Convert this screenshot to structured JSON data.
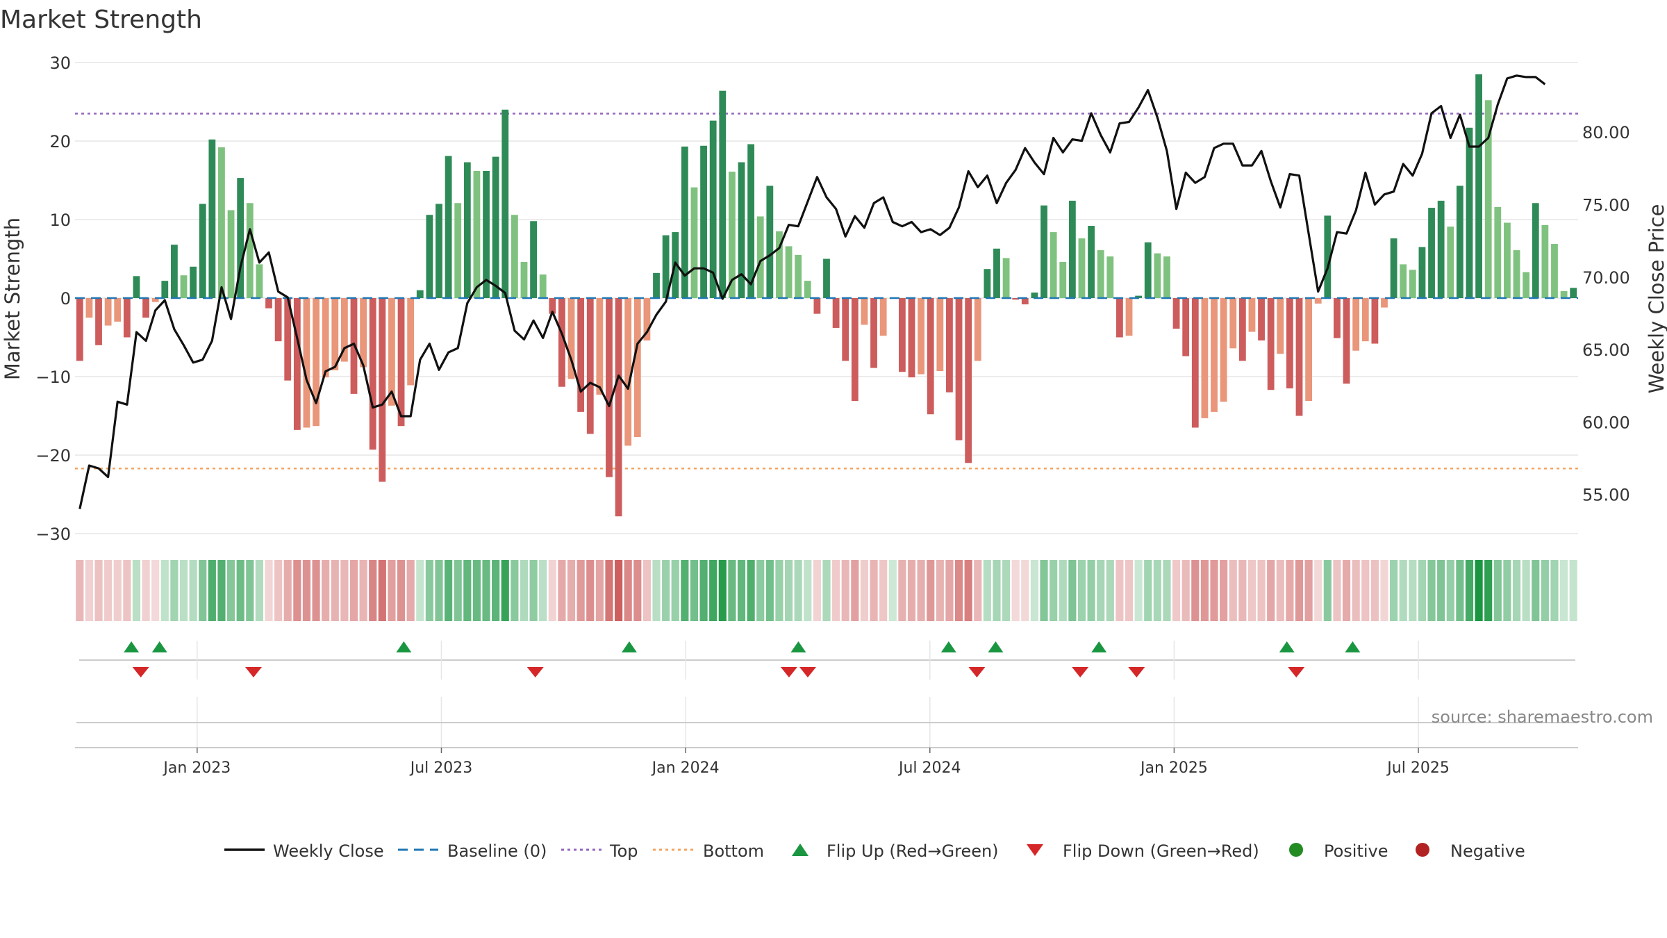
{
  "colors": {
    "posStrong": "#2e8b57",
    "posWeak": "#7fc27f",
    "negStrong": "#cd5c5c",
    "negWeak": "#e9967a",
    "close": "#111111",
    "baseline": "#1f77b4",
    "top": "#9467bd",
    "bottom": "#f4a460",
    "flipUp": "#1a9641",
    "flipDown": "#d62728",
    "positive": "#228b22",
    "negative": "#b22222",
    "grid": "#e6e6e6"
  },
  "chart_data": {
    "type": "bar",
    "title": "Market Strength",
    "source": "source: sharemaestro.com",
    "ylabel_left": "Market Strength",
    "ylabel_right": "Weekly Close Price",
    "ylim_left": [
      -30,
      30
    ],
    "yticks_left": [
      {
        "v": 30,
        "label": "30"
      },
      {
        "v": 20,
        "label": "20"
      },
      {
        "v": 10,
        "label": "10"
      },
      {
        "v": 0,
        "label": "0"
      },
      {
        "v": -10,
        "label": "−10"
      },
      {
        "v": -20,
        "label": "−20"
      },
      {
        "v": -30,
        "label": "−30"
      }
    ],
    "ylim_right": [
      52.3,
      84.8
    ],
    "yticks_right": [
      {
        "v": 80,
        "label": "80.00"
      },
      {
        "v": 75,
        "label": "75.00"
      },
      {
        "v": 70,
        "label": "70.00"
      },
      {
        "v": 65,
        "label": "65.00"
      },
      {
        "v": 60,
        "label": "60.00"
      },
      {
        "v": 55,
        "label": "55.00"
      }
    ],
    "x_start_week": -13,
    "x_end_week": 147,
    "xticks": [
      {
        "week": 0,
        "label": "Jan 2023"
      },
      {
        "week": 26,
        "label": "Jul 2023"
      },
      {
        "week": 52,
        "label": "Jan 2024"
      },
      {
        "week": 78,
        "label": "Jul 2024"
      },
      {
        "week": 104,
        "label": "Jan 2025"
      },
      {
        "week": 130,
        "label": "Jul 2025"
      }
    ],
    "top_level": 23.5,
    "bottom_level": -21.7,
    "strength": [
      -8,
      -2.5,
      -6,
      -3.5,
      -3,
      -5,
      2.8,
      -2.5,
      -0.5,
      2.2,
      6.8,
      2.9,
      4,
      12,
      20.2,
      19.2,
      11.2,
      15.3,
      12.1,
      4.3,
      -1.3,
      -5.5,
      -10.5,
      -16.8,
      -16.5,
      -16.3,
      -10.1,
      -9.2,
      -8.1,
      -12.2,
      -8.8,
      -19.3,
      -23.4,
      -13.7,
      -16.3,
      -11.1,
      1,
      10.6,
      12,
      18.1,
      12.1,
      17.3,
      16.2,
      16.2,
      18,
      24,
      10.6,
      4.6,
      9.8,
      3,
      -2,
      -11.3,
      -10.3,
      -14.5,
      -17.3,
      -12.3,
      -22.8,
      -27.8,
      -18.8,
      -17.7,
      -5.4,
      3.2,
      8,
      8.4,
      19.3,
      14.1,
      19.4,
      22.6,
      26.4,
      16.1,
      17.3,
      19.6,
      10.4,
      14.3,
      8.5,
      6.6,
      5.5,
      2.2,
      -2,
      5,
      -3.8,
      -8,
      -13.1,
      -3.4,
      -8.9,
      -4.8,
      0,
      -9.4,
      -10.1,
      -9.7,
      -14.8,
      -9.3,
      -12,
      -18.1,
      -21,
      -8,
      3.7,
      6.3,
      5.1,
      -0.2,
      -0.8,
      0.7,
      11.8,
      8.4,
      4.6,
      12.4,
      7.6,
      9.2,
      6.1,
      5.3,
      -5,
      -4.8,
      0.3,
      7.1,
      5.7,
      5.3,
      -3.9,
      -7.4,
      -16.5,
      -15.3,
      -14.5,
      -13.2,
      -6.4,
      -8,
      -4.3,
      -5.4,
      -11.7,
      -7.1,
      -11.5,
      -15,
      -13.1,
      -0.7,
      10.5,
      -5.1,
      -10.9,
      -6.7,
      -5.5,
      -5.8,
      -1.2,
      7.6,
      4.3,
      3.6,
      6.5,
      11.5,
      12.4,
      9.1,
      14.3,
      21.7,
      28.5,
      25.2,
      11.6,
      9.6,
      6.1,
      3.3,
      12.1,
      9.3,
      6.9,
      0.9,
      1.3
    ],
    "weekly_close": [
      54.0,
      57.0,
      56.8,
      56.2,
      61.4,
      61.2,
      66.2,
      65.6,
      67.7,
      68.4,
      66.4,
      65.3,
      64.1,
      64.3,
      65.6,
      69.3,
      67.1,
      70.7,
      73.3,
      71.0,
      71.7,
      69.0,
      68.6,
      65.8,
      62.9,
      61.3,
      63.5,
      63.8,
      65.1,
      65.4,
      63.9,
      61.0,
      61.2,
      62.1,
      60.4,
      60.4,
      64.3,
      65.4,
      63.6,
      64.8,
      65.1,
      68.2,
      69.3,
      69.8,
      69.4,
      68.9,
      66.3,
      65.7,
      67.0,
      65.8,
      67.6,
      66.1,
      64.3,
      62.1,
      62.7,
      62.4,
      61.1,
      63.2,
      62.3,
      65.4,
      66.2,
      67.4,
      68.3,
      71.0,
      70.1,
      70.6,
      70.6,
      70.3,
      68.5,
      69.8,
      70.2,
      69.5,
      71.1,
      71.5,
      72.0,
      73.6,
      73.5,
      75.2,
      76.9,
      75.5,
      74.7,
      72.8,
      74.2,
      73.4,
      75.1,
      75.5,
      73.8,
      73.5,
      73.8,
      73.1,
      73.3,
      72.9,
      73.4,
      74.8,
      77.3,
      76.2,
      77.0,
      75.1,
      76.5,
      77.4,
      78.9,
      77.9,
      77.1,
      79.6,
      78.6,
      79.5,
      79.4,
      81.3,
      79.8,
      78.6,
      80.6,
      80.7,
      81.7,
      82.9,
      81.0,
      78.7,
      74.7,
      77.2,
      76.5,
      76.9,
      78.9,
      79.2,
      79.2,
      77.7,
      77.7,
      78.7,
      76.6,
      74.8,
      77.1,
      77.0,
      73.0,
      69.0,
      70.6,
      73.1,
      73.0,
      74.6,
      77.2,
      75.0,
      75.7,
      75.9,
      77.8,
      77.0,
      78.5,
      81.3,
      81.8,
      79.6,
      81.2,
      79.0,
      79.0,
      79.6,
      81.9,
      83.7,
      83.9,
      83.8,
      83.8,
      83.3
    ],
    "flip_up_weeks": [
      -7,
      -4,
      22,
      46,
      64,
      80,
      85,
      96,
      116,
      123
    ],
    "flip_down_weeks": [
      -6,
      6,
      36,
      63,
      65,
      83,
      94,
      100,
      117
    ],
    "legend": [
      {
        "key": "close",
        "label": "Weekly Close"
      },
      {
        "key": "baseline",
        "label": "Baseline (0)"
      },
      {
        "key": "top",
        "label": "Top"
      },
      {
        "key": "bottom",
        "label": "Bottom"
      },
      {
        "key": "flipUp",
        "label": "Flip Up (Red→Green)"
      },
      {
        "key": "flipDown",
        "label": "Flip Down (Green→Red)"
      },
      {
        "key": "positive",
        "label": "Positive"
      },
      {
        "key": "negative",
        "label": "Negative"
      }
    ]
  }
}
